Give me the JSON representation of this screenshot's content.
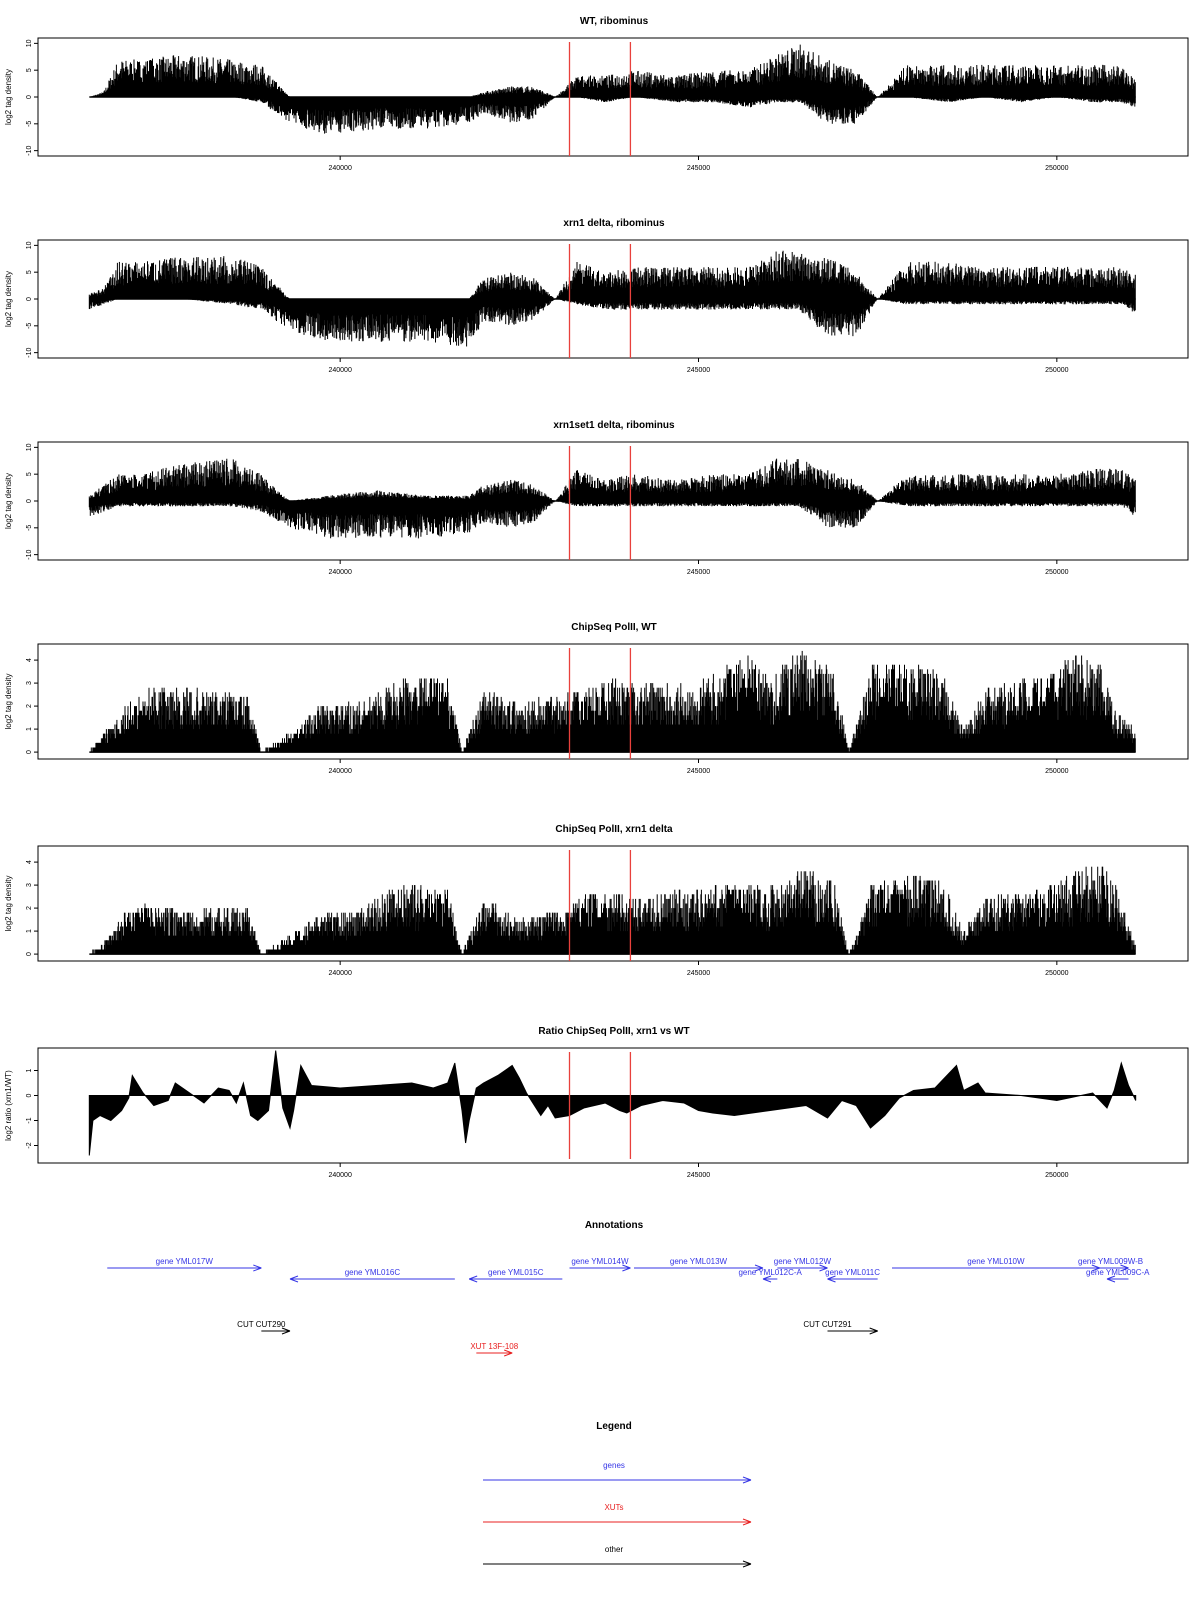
{
  "colors": {
    "axis": "#000000",
    "bars": "#000000",
    "marker": "#e8413c",
    "gene": "#3535e6",
    "xut": "#e82020",
    "other": "#000000"
  },
  "chart_data": [
    {
      "type": "bar",
      "title": "WT, ribominus",
      "ylabel": "log2 tag density",
      "xlim": [
        236300,
        251300
      ],
      "ylim": [
        -11,
        11
      ],
      "x_ticks": [
        {
          "value": 240000,
          "label": "240000"
        },
        {
          "value": 245000,
          "label": "245000"
        },
        {
          "value": 250000,
          "label": "250000"
        }
      ],
      "y_ticks": [
        {
          "value": 10,
          "label": "10"
        },
        {
          "value": 5,
          "label": "5"
        },
        {
          "value": 0,
          "label": "0"
        },
        {
          "value": -5,
          "label": "-5"
        },
        {
          "value": -10,
          "label": "-10"
        }
      ],
      "profile_x": [
        236500,
        236700,
        236900,
        237200,
        237800,
        238500,
        238900,
        239300,
        239800,
        240500,
        241200,
        241800,
        242000,
        242400,
        242700,
        243000,
        243300,
        243700,
        244100,
        244700,
        245200,
        245700,
        246100,
        246400,
        246800,
        247200,
        247500,
        247900,
        248500,
        249000,
        249500,
        250000,
        250500,
        250900,
        251100
      ],
      "profile_top": [
        0,
        1,
        7,
        7,
        8,
        7,
        6,
        0,
        0,
        0,
        0,
        0,
        1,
        2,
        2,
        0,
        4,
        4,
        5,
        4,
        5,
        5,
        8,
        10,
        7,
        5,
        0,
        6,
        6,
        6,
        6,
        6,
        6,
        6,
        3
      ],
      "profile_bottom": [
        0,
        0,
        0,
        0,
        0,
        0,
        -1,
        -5,
        -7,
        -6,
        -6,
        -5,
        -3,
        -5,
        -4,
        0,
        0,
        -1,
        0,
        -1,
        -1,
        -2,
        -1,
        -1,
        -5,
        -5,
        0,
        0,
        -1,
        0,
        -1,
        0,
        -1,
        -1,
        -2
      ],
      "markers": [
        243200,
        244050
      ]
    },
    {
      "type": "bar",
      "title": "xrn1 delta, ribominus",
      "ylabel": "log2 tag density",
      "xlim": [
        236300,
        251300
      ],
      "ylim": [
        -11,
        11
      ],
      "x_ticks": [
        {
          "value": 240000,
          "label": "240000"
        },
        {
          "value": 245000,
          "label": "245000"
        },
        {
          "value": 250000,
          "label": "250000"
        }
      ],
      "y_ticks": [
        {
          "value": 10,
          "label": "10"
        },
        {
          "value": 5,
          "label": "5"
        },
        {
          "value": 0,
          "label": "0"
        },
        {
          "value": -5,
          "label": "-5"
        },
        {
          "value": -10,
          "label": "-10"
        }
      ],
      "profile_x": [
        236500,
        236700,
        236900,
        237200,
        237800,
        238500,
        238900,
        239300,
        239800,
        240500,
        241200,
        241800,
        242000,
        242400,
        242700,
        243000,
        243300,
        243700,
        244100,
        244700,
        245200,
        245700,
        246100,
        246400,
        246800,
        247200,
        247500,
        247900,
        248500,
        249000,
        249500,
        250000,
        250500,
        250900,
        251100
      ],
      "profile_top": [
        1,
        2,
        7,
        7,
        8,
        8,
        6,
        0,
        0,
        0,
        0,
        0,
        4,
        5,
        4,
        0,
        7,
        5,
        6,
        6,
        6,
        6,
        9,
        9,
        8,
        5,
        0,
        7,
        7,
        6,
        6,
        6,
        6,
        6,
        5
      ],
      "profile_bottom": [
        -2,
        -1,
        0,
        0,
        0,
        -1,
        -2,
        -6,
        -8,
        -8,
        -8,
        -9,
        -4,
        -5,
        -4,
        0,
        -1,
        -2,
        -2,
        -2,
        -2,
        -2,
        -2,
        -2,
        -7,
        -7,
        0,
        -1,
        -1,
        -1,
        -1,
        -1,
        -1,
        -1,
        -3
      ],
      "markers": [
        243200,
        244050
      ]
    },
    {
      "type": "bar",
      "title": "xrn1set1 delta, ribominus",
      "ylabel": "log2 tag density",
      "xlim": [
        236300,
        251300
      ],
      "ylim": [
        -11,
        11
      ],
      "x_ticks": [
        {
          "value": 240000,
          "label": "240000"
        },
        {
          "value": 245000,
          "label": "245000"
        },
        {
          "value": 250000,
          "label": "250000"
        }
      ],
      "y_ticks": [
        {
          "value": 10,
          "label": "10"
        },
        {
          "value": 5,
          "label": "5"
        },
        {
          "value": 0,
          "label": "0"
        },
        {
          "value": -5,
          "label": "-5"
        },
        {
          "value": -10,
          "label": "-10"
        }
      ],
      "profile_x": [
        236500,
        236700,
        236900,
        237200,
        237800,
        238500,
        238900,
        239300,
        239800,
        240500,
        241200,
        241800,
        242000,
        242400,
        242700,
        243000,
        243300,
        243700,
        244100,
        244700,
        245200,
        245700,
        246100,
        246400,
        246800,
        247200,
        247500,
        247900,
        248500,
        249000,
        249500,
        250000,
        250500,
        250900,
        251100
      ],
      "profile_top": [
        1,
        3,
        5,
        5,
        7,
        8,
        5,
        0,
        1,
        2,
        1,
        1,
        3,
        4,
        3,
        0,
        6,
        4,
        5,
        4,
        5,
        5,
        8,
        8,
        6,
        4,
        0,
        5,
        5,
        5,
        5,
        5,
        6,
        6,
        4
      ],
      "profile_bottom": [
        -3,
        -2,
        -1,
        -1,
        -1,
        -1,
        -2,
        -5,
        -7,
        -7,
        -7,
        -6,
        -4,
        -5,
        -4,
        0,
        -1,
        -1,
        -1,
        -1,
        -1,
        -1,
        -1,
        -1,
        -5,
        -5,
        0,
        -1,
        -1,
        -1,
        -1,
        -1,
        -1,
        -1,
        -3
      ],
      "markers": [
        243200,
        244050
      ]
    },
    {
      "type": "bar",
      "title": "ChipSeq PolII, WT",
      "ylabel": "log2 tag density",
      "xlim": [
        236300,
        251300
      ],
      "ylim": [
        -0.3,
        4.7
      ],
      "x_ticks": [
        {
          "value": 240000,
          "label": "240000"
        },
        {
          "value": 245000,
          "label": "245000"
        },
        {
          "value": 250000,
          "label": "250000"
        }
      ],
      "y_ticks": [
        {
          "value": 4,
          "label": "4"
        },
        {
          "value": 3,
          "label": "3"
        },
        {
          "value": 2,
          "label": "2"
        },
        {
          "value": 1,
          "label": "1"
        },
        {
          "value": 0,
          "label": "0"
        }
      ],
      "profile_x": [
        236500,
        236700,
        237000,
        237300,
        237700,
        238200,
        238700,
        238900,
        239400,
        239700,
        240300,
        240600,
        241000,
        241500,
        241700,
        242000,
        242500,
        242900,
        243300,
        243700,
        244200,
        244800,
        245200,
        245500,
        245700,
        246000,
        246300,
        246500,
        246900,
        247100,
        247400,
        247600,
        248000,
        248400,
        248700,
        249000,
        249500,
        249900,
        250200,
        250600,
        250800,
        251100
      ],
      "profile_top": [
        0,
        1,
        2,
        2.8,
        2.8,
        2.7,
        2.5,
        0,
        1,
        2,
        2.2,
        2.8,
        3.3,
        3.3,
        0,
        2.8,
        2.2,
        2.5,
        2.8,
        3.2,
        3.1,
        3,
        3.3,
        4,
        4.2,
        3.2,
        4.3,
        4.5,
        3.5,
        0,
        3.8,
        4,
        3.8,
        3.5,
        1,
        2.8,
        3.2,
        3.5,
        4.3,
        3.9,
        2,
        1
      ],
      "markers": [
        243200,
        244050
      ]
    },
    {
      "type": "bar",
      "title": "ChipSeq PolII, xrn1 delta",
      "ylabel": "log2 tag density",
      "xlim": [
        236300,
        251300
      ],
      "ylim": [
        -0.3,
        4.7
      ],
      "x_ticks": [
        {
          "value": 240000,
          "label": "240000"
        },
        {
          "value": 245000,
          "label": "245000"
        },
        {
          "value": 250000,
          "label": "250000"
        }
      ],
      "y_ticks": [
        {
          "value": 4,
          "label": "4"
        },
        {
          "value": 3,
          "label": "3"
        },
        {
          "value": 2,
          "label": "2"
        },
        {
          "value": 1,
          "label": "1"
        },
        {
          "value": 0,
          "label": "0"
        }
      ],
      "profile_x": [
        236500,
        236700,
        237000,
        237300,
        237700,
        238200,
        238700,
        238900,
        239400,
        239700,
        240300,
        240600,
        241000,
        241500,
        241700,
        242000,
        242500,
        242900,
        243300,
        243700,
        244200,
        244800,
        245200,
        245500,
        245700,
        246000,
        246300,
        246500,
        246900,
        247100,
        247400,
        247600,
        248000,
        248400,
        248700,
        249000,
        249500,
        249900,
        250200,
        250600,
        250800,
        251100
      ],
      "profile_top": [
        0,
        0.5,
        1.8,
        2.2,
        2,
        2,
        2.2,
        0,
        1,
        1.8,
        2,
        2.8,
        3,
        2.8,
        0,
        2.5,
        1.5,
        1.8,
        2.5,
        2.8,
        2.5,
        2.8,
        3,
        3.2,
        3,
        3,
        3.5,
        3.8,
        3.2,
        0,
        3,
        3.2,
        3.5,
        3.2,
        1,
        2.5,
        2.8,
        3,
        3.5,
        4,
        3.2,
        0.3
      ],
      "markers": [
        243200,
        244050
      ]
    },
    {
      "type": "area",
      "title": "Ratio ChipSeq PolII, xrn1 vs WT",
      "ylabel": "log2 ratio (xrn1/WT)",
      "xlim": [
        236300,
        251300
      ],
      "ylim": [
        -2.7,
        1.9
      ],
      "x_ticks": [
        {
          "value": 240000,
          "label": "240000"
        },
        {
          "value": 245000,
          "label": "245000"
        },
        {
          "value": 250000,
          "label": "250000"
        }
      ],
      "y_ticks": [
        {
          "value": 1,
          "label": "1"
        },
        {
          "value": 0,
          "label": "0"
        },
        {
          "value": -1,
          "label": "-1"
        },
        {
          "value": -2,
          "label": "-2"
        }
      ],
      "x": [
        236500,
        236550,
        236650,
        236800,
        236950,
        237050,
        237100,
        237250,
        237400,
        237600,
        237700,
        237900,
        238100,
        238300,
        238450,
        238550,
        238650,
        238750,
        238850,
        239000,
        239100,
        239200,
        239300,
        239350,
        239450,
        239600,
        240000,
        240500,
        241000,
        241300,
        241500,
        241600,
        241700,
        241750,
        241800,
        241900,
        242000,
        242200,
        242400,
        242500,
        242600,
        242800,
        242900,
        243000,
        243200,
        243400,
        243700,
        243900,
        244000,
        244200,
        244500,
        244800,
        245000,
        245200,
        245500,
        246000,
        246500,
        246800,
        247000,
        247200,
        247400,
        247600,
        247800,
        248000,
        248300,
        248500,
        248600,
        248700,
        248900,
        249000,
        249500,
        250000,
        250500,
        250700,
        250800,
        250900,
        251000,
        251100
      ],
      "y": [
        -2.4,
        -1,
        -0.8,
        -1,
        -0.6,
        -0.1,
        0.8,
        0.1,
        -0.4,
        -0.2,
        0.5,
        0.1,
        -0.3,
        0.3,
        0.2,
        -0.3,
        0.5,
        -0.8,
        -1,
        -0.6,
        1.8,
        -0.5,
        -1.3,
        -0.6,
        1.2,
        0.4,
        0.3,
        0.4,
        0.5,
        0.3,
        0.5,
        1.3,
        -0.6,
        -1.9,
        -1,
        0.3,
        0.5,
        0.8,
        1.2,
        0.7,
        0.1,
        -0.8,
        -0.4,
        -0.9,
        -0.8,
        -0.5,
        -0.3,
        -0.6,
        -0.7,
        -0.4,
        -0.2,
        -0.3,
        -0.6,
        -0.7,
        -0.8,
        -0.6,
        -0.4,
        -0.9,
        -0.2,
        -0.4,
        -1.3,
        -0.8,
        -0.1,
        0.2,
        0.3,
        0.9,
        1.2,
        0.2,
        0.5,
        0.1,
        0,
        -0.2,
        0.1,
        -0.5,
        0.2,
        1.3,
        0.4,
        -0.2
      ],
      "markers": [
        243200,
        244050
      ]
    }
  ],
  "annotations": {
    "title": "Annotations",
    "genes": [
      {
        "label": "gene YML017W",
        "start": 236750,
        "end": 238900,
        "strand": "+",
        "row": 1
      },
      {
        "label": "gene YML016C",
        "start": 239300,
        "end": 241600,
        "strand": "-",
        "row": 2
      },
      {
        "label": "gene YML015C",
        "start": 241800,
        "end": 243100,
        "strand": "-",
        "row": 2
      },
      {
        "label": "gene YML014W",
        "start": 243200,
        "end": 244050,
        "strand": "+",
        "row": 1
      },
      {
        "label": "gene YML013W",
        "start": 244100,
        "end": 245900,
        "strand": "+",
        "row": 1
      },
      {
        "label": "gene YML012C-A",
        "start": 245900,
        "end": 246100,
        "strand": "-",
        "row": 2
      },
      {
        "label": "gene YML012W",
        "start": 246100,
        "end": 246800,
        "strand": "+",
        "row": 1
      },
      {
        "label": "gene YML011C",
        "start": 246800,
        "end": 247500,
        "strand": "-",
        "row": 2
      },
      {
        "label": "gene YML010W",
        "start": 247700,
        "end": 250600,
        "strand": "+",
        "row": 1
      },
      {
        "label": "gene YML009W-B",
        "start": 250500,
        "end": 251000,
        "strand": "+",
        "row": 1
      },
      {
        "label": "gene YML009C-A",
        "start": 250700,
        "end": 251000,
        "strand": "-",
        "row": 2
      }
    ],
    "cuts": [
      {
        "label": "CUT CUT290",
        "start": 238900,
        "end": 239300,
        "strand": "+"
      },
      {
        "label": "CUT CUT291",
        "start": 246800,
        "end": 247500,
        "strand": "+"
      }
    ],
    "xuts": [
      {
        "label": "XUT 13F-108",
        "start": 241900,
        "end": 242400,
        "strand": "+"
      }
    ]
  },
  "legend": {
    "title": "Legend",
    "items": [
      {
        "label": "genes",
        "color": "#3535e6"
      },
      {
        "label": "XUTs",
        "color": "#e82020"
      },
      {
        "label": "other",
        "color": "#000000"
      }
    ]
  }
}
